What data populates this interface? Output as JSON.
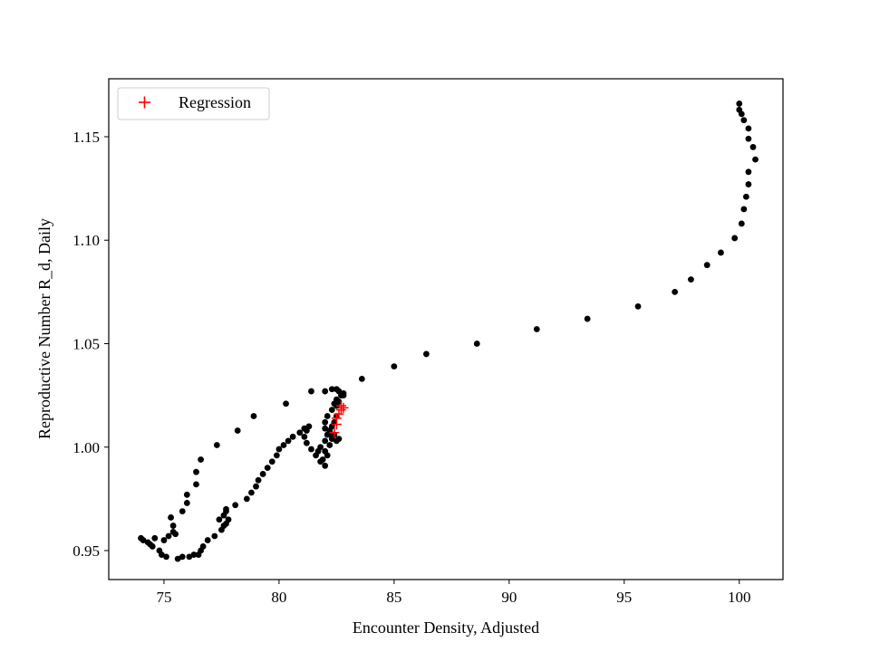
{
  "chart_data": {
    "type": "scatter",
    "title": "",
    "xlabel": "Encounter Density, Adjusted",
    "ylabel": "Reproductive Number R_d, Daily",
    "xlim": [
      72.6,
      101.9
    ],
    "ylim": [
      0.936,
      1.178
    ],
    "xticks": [
      75,
      80,
      85,
      90,
      95,
      100
    ],
    "yticks": [
      0.95,
      1.0,
      1.05,
      1.1,
      1.15
    ],
    "xtick_labels": [
      "75",
      "80",
      "85",
      "90",
      "95",
      "100"
    ],
    "ytick_labels": [
      "0.95",
      "1.00",
      "1.05",
      "1.10",
      "1.15"
    ],
    "grid": false,
    "legend": {
      "position": "top-left",
      "entries": [
        "Regression"
      ]
    },
    "series": [
      {
        "marker": "circle",
        "color": "#000000",
        "points": [
          [
            100.0,
            1.166
          ],
          [
            100.0,
            1.163
          ],
          [
            100.1,
            1.161
          ],
          [
            100.2,
            1.158
          ],
          [
            100.4,
            1.154
          ],
          [
            100.4,
            1.149
          ],
          [
            100.6,
            1.145
          ],
          [
            100.7,
            1.139
          ],
          [
            100.4,
            1.133
          ],
          [
            100.4,
            1.127
          ],
          [
            100.3,
            1.121
          ],
          [
            100.2,
            1.115
          ],
          [
            100.1,
            1.108
          ],
          [
            99.8,
            1.101
          ],
          [
            99.2,
            1.094
          ],
          [
            98.6,
            1.088
          ],
          [
            97.9,
            1.081
          ],
          [
            97.2,
            1.075
          ],
          [
            95.6,
            1.068
          ],
          [
            93.4,
            1.062
          ],
          [
            91.2,
            1.057
          ],
          [
            88.6,
            1.05
          ],
          [
            86.4,
            1.045
          ],
          [
            85.0,
            1.039
          ],
          [
            83.6,
            1.033
          ],
          [
            82.8,
            1.026
          ],
          [
            82.5,
            1.028
          ],
          [
            82.3,
            1.028
          ],
          [
            82.0,
            1.027
          ],
          [
            81.4,
            1.027
          ],
          [
            80.3,
            1.021
          ],
          [
            78.9,
            1.015
          ],
          [
            78.2,
            1.008
          ],
          [
            77.3,
            1.001
          ],
          [
            76.6,
            0.994
          ],
          [
            76.4,
            0.988
          ],
          [
            76.4,
            0.982
          ],
          [
            76.0,
            0.977
          ],
          [
            76.0,
            0.973
          ],
          [
            75.8,
            0.969
          ],
          [
            75.3,
            0.966
          ],
          [
            75.4,
            0.962
          ],
          [
            75.4,
            0.959
          ],
          [
            75.5,
            0.958
          ],
          [
            75.2,
            0.957
          ],
          [
            75.0,
            0.955
          ],
          [
            74.6,
            0.956
          ],
          [
            74.4,
            0.953
          ],
          [
            74.1,
            0.955
          ],
          [
            74.0,
            0.956
          ],
          [
            74.3,
            0.954
          ],
          [
            74.5,
            0.952
          ],
          [
            74.8,
            0.95
          ],
          [
            74.9,
            0.948
          ],
          [
            75.1,
            0.947
          ],
          [
            75.6,
            0.946
          ],
          [
            75.8,
            0.947
          ],
          [
            76.1,
            0.947
          ],
          [
            76.3,
            0.948
          ],
          [
            76.5,
            0.948
          ],
          [
            76.6,
            0.95
          ],
          [
            76.7,
            0.952
          ],
          [
            76.9,
            0.955
          ],
          [
            77.2,
            0.957
          ],
          [
            77.5,
            0.96
          ],
          [
            77.6,
            0.962
          ],
          [
            77.7,
            0.963
          ],
          [
            77.8,
            0.965
          ],
          [
            77.6,
            0.967
          ],
          [
            77.4,
            0.965
          ],
          [
            77.7,
            0.969
          ],
          [
            77.7,
            0.97
          ],
          [
            78.1,
            0.972
          ],
          [
            78.6,
            0.975
          ],
          [
            78.8,
            0.978
          ],
          [
            79.0,
            0.981
          ],
          [
            79.1,
            0.984
          ],
          [
            79.3,
            0.987
          ],
          [
            79.5,
            0.99
          ],
          [
            79.7,
            0.993
          ],
          [
            79.9,
            0.996
          ],
          [
            80.0,
            0.999
          ],
          [
            80.2,
            1.001
          ],
          [
            80.4,
            1.003
          ],
          [
            80.6,
            1.005
          ],
          [
            80.9,
            1.007
          ],
          [
            81.1,
            1.009
          ],
          [
            81.3,
            1.01
          ],
          [
            81.2,
            1.008
          ],
          [
            81.1,
            1.005
          ],
          [
            81.2,
            1.002
          ],
          [
            81.4,
            0.999
          ],
          [
            81.6,
            0.996
          ],
          [
            81.8,
            0.993
          ],
          [
            82.0,
            0.991
          ],
          [
            81.9,
            0.994
          ],
          [
            82.0,
            0.998
          ],
          [
            81.8,
            1.0
          ],
          [
            81.7,
            0.998
          ],
          [
            82.1,
            0.996
          ],
          [
            82.2,
            1.001
          ],
          [
            82.3,
            1.004
          ],
          [
            82.1,
            1.006
          ],
          [
            82.0,
            1.009
          ],
          [
            82.0,
            1.012
          ],
          [
            82.1,
            1.015
          ],
          [
            82.3,
            1.018
          ],
          [
            82.5,
            1.02
          ],
          [
            82.6,
            1.022
          ],
          [
            82.7,
            1.025
          ],
          [
            82.8,
            1.025
          ],
          [
            82.6,
            1.027
          ],
          [
            82.5,
            1.023
          ],
          [
            82.4,
            1.021
          ],
          [
            82.5,
            1.015
          ],
          [
            82.4,
            1.012
          ],
          [
            82.3,
            1.01
          ],
          [
            82.2,
            1.008
          ],
          [
            82.4,
            1.006
          ],
          [
            82.6,
            1.004
          ],
          [
            82.0,
            1.003
          ],
          [
            82.3,
            1.006
          ],
          [
            82.5,
            1.003
          ]
        ]
      },
      {
        "name": "Regression",
        "marker": "plus",
        "color": "#ff0000",
        "points": [
          [
            82.4,
            1.007
          ],
          [
            82.5,
            1.011
          ],
          [
            82.5,
            1.014
          ],
          [
            82.6,
            1.016
          ],
          [
            82.7,
            1.018
          ],
          [
            82.8,
            1.019
          ],
          [
            82.7,
            1.02
          ]
        ]
      }
    ]
  }
}
